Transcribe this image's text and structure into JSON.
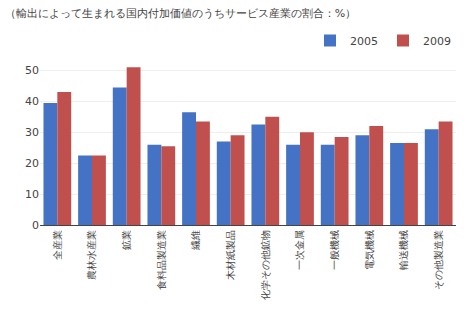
{
  "chart_data": {
    "type": "bar",
    "title": "（輸出によって生まれる国内付加価値のうちサービス産業の割合：%）",
    "categories": [
      "全産業",
      "農林水産業",
      "鉱業",
      "食料品製造業",
      "繊維",
      "木材紙製品",
      "化学その他鉱物",
      "一次金属",
      "一般機械",
      "電気機械",
      "輸送機械",
      "その他製造業"
    ],
    "series": [
      {
        "name": "2005",
        "color": "#4472C4",
        "values": [
          39.5,
          22.5,
          44.5,
          26.0,
          36.5,
          27.0,
          32.5,
          26.0,
          26.0,
          29.0,
          26.5,
          31.0
        ]
      },
      {
        "name": "2009",
        "color": "#C0504D",
        "values": [
          43.0,
          22.5,
          51.0,
          25.5,
          33.5,
          29.0,
          35.0,
          30.0,
          28.5,
          32.0,
          26.5,
          33.5
        ]
      }
    ],
    "ylim": [
      0,
      55
    ],
    "yticks": [
      0,
      10,
      20,
      30,
      40,
      50
    ],
    "grid": true,
    "legend": "upper right"
  }
}
